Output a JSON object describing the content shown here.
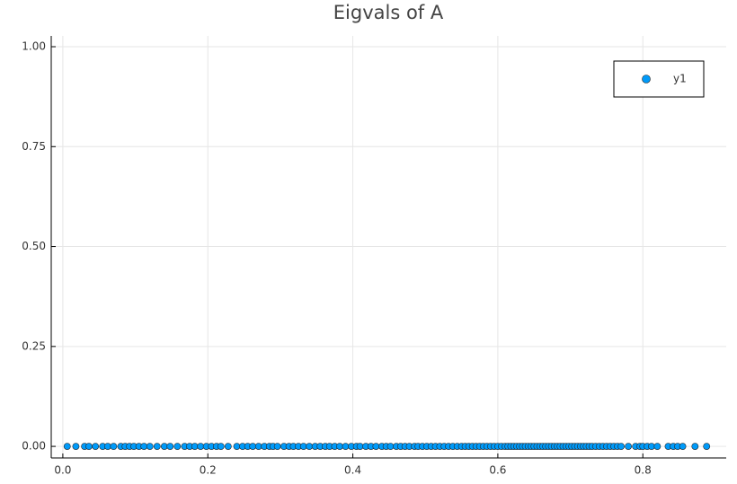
{
  "chart_data": {
    "type": "scatter",
    "title": "Eigvals of A",
    "x": [
      0.006,
      0.018,
      0.03,
      0.036,
      0.045,
      0.055,
      0.062,
      0.07,
      0.08,
      0.086,
      0.092,
      0.098,
      0.105,
      0.112,
      0.12,
      0.13,
      0.14,
      0.148,
      0.158,
      0.168,
      0.175,
      0.182,
      0.19,
      0.198,
      0.205,
      0.212,
      0.218,
      0.228,
      0.24,
      0.248,
      0.255,
      0.262,
      0.27,
      0.278,
      0.285,
      0.29,
      0.296,
      0.305,
      0.312,
      0.318,
      0.325,
      0.332,
      0.34,
      0.348,
      0.355,
      0.362,
      0.368,
      0.375,
      0.382,
      0.39,
      0.398,
      0.405,
      0.41,
      0.418,
      0.425,
      0.432,
      0.44,
      0.446,
      0.452,
      0.46,
      0.466,
      0.472,
      0.478,
      0.485,
      0.49,
      0.496,
      0.502,
      0.508,
      0.514,
      0.52,
      0.526,
      0.532,
      0.538,
      0.544,
      0.55,
      0.555,
      0.56,
      0.565,
      0.57,
      0.575,
      0.58,
      0.585,
      0.59,
      0.595,
      0.6,
      0.605,
      0.61,
      0.614,
      0.618,
      0.622,
      0.626,
      0.63,
      0.634,
      0.638,
      0.642,
      0.646,
      0.65,
      0.654,
      0.658,
      0.662,
      0.666,
      0.67,
      0.674,
      0.678,
      0.682,
      0.686,
      0.69,
      0.694,
      0.698,
      0.702,
      0.706,
      0.71,
      0.714,
      0.718,
      0.722,
      0.726,
      0.73,
      0.735,
      0.74,
      0.745,
      0.75,
      0.755,
      0.76,
      0.765,
      0.77,
      0.78,
      0.79,
      0.796,
      0.8,
      0.806,
      0.812,
      0.82,
      0.835,
      0.842,
      0.848,
      0.855,
      0.872,
      0.888
    ],
    "series": [
      {
        "name": "y1",
        "color": "#009af9",
        "values": [
          0,
          0,
          0,
          0,
          0,
          0,
          0,
          0,
          0,
          0,
          0,
          0,
          0,
          0,
          0,
          0,
          0,
          0,
          0,
          0,
          0,
          0,
          0,
          0,
          0,
          0,
          0,
          0,
          0,
          0,
          0,
          0,
          0,
          0,
          0,
          0,
          0,
          0,
          0,
          0,
          0,
          0,
          0,
          0,
          0,
          0,
          0,
          0,
          0,
          0,
          0,
          0,
          0,
          0,
          0,
          0,
          0,
          0,
          0,
          0,
          0,
          0,
          0,
          0,
          0,
          0,
          0,
          0,
          0,
          0,
          0,
          0,
          0,
          0,
          0,
          0,
          0,
          0,
          0,
          0,
          0,
          0,
          0,
          0,
          0,
          0,
          0,
          0,
          0,
          0,
          0,
          0,
          0,
          0,
          0,
          0,
          0,
          0,
          0,
          0,
          0,
          0,
          0,
          0,
          0,
          0,
          0,
          0,
          0,
          0,
          0,
          0,
          0,
          0,
          0,
          0,
          0,
          0,
          0,
          0,
          0,
          0,
          0,
          0,
          0,
          0,
          0,
          0,
          0,
          0,
          0,
          0,
          0,
          0,
          0,
          0,
          0,
          0
        ]
      }
    ],
    "xlim": [
      -0.016,
      0.915
    ],
    "ylim": [
      -0.029,
      1.027
    ],
    "xticks": [
      {
        "value": 0,
        "label": "0.0"
      },
      0.2,
      0.4,
      0.6,
      0.8
    ],
    "yticks": [
      {
        "value": 0,
        "label": "0.00"
      },
      {
        "value": 0.25,
        "label": "0.25"
      },
      {
        "value": 0.5,
        "label": "0.50"
      },
      {
        "value": 0.75,
        "label": "0.75"
      },
      {
        "value": 1,
        "label": "1.00"
      }
    ],
    "grid": true,
    "legend": "topright"
  }
}
